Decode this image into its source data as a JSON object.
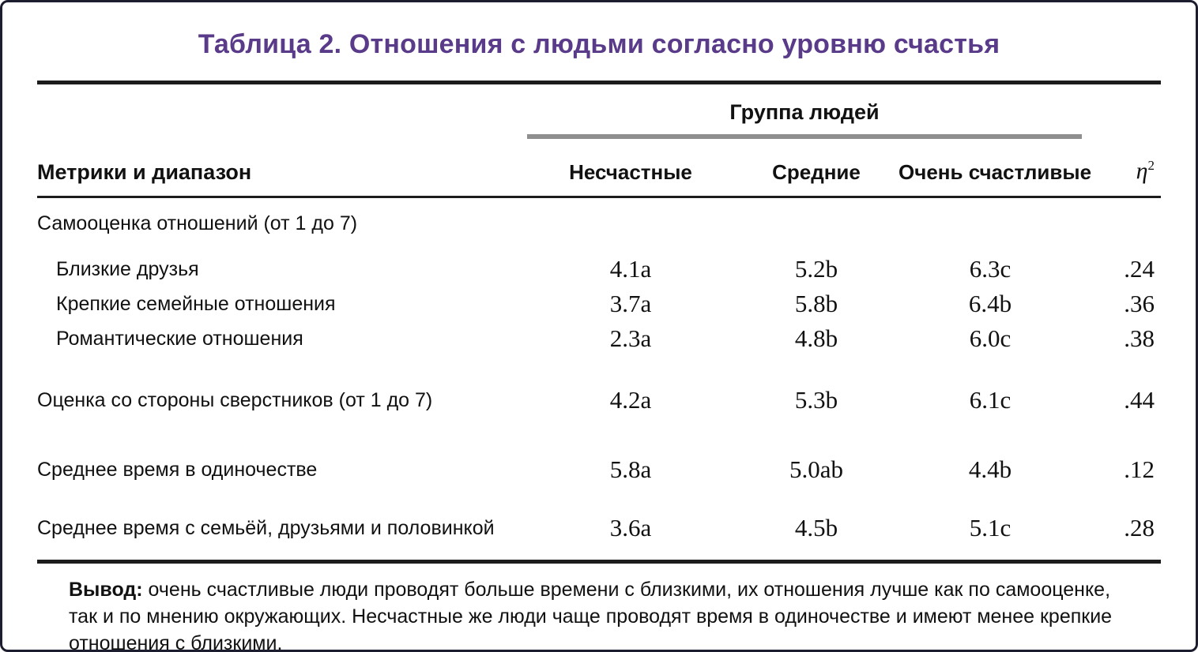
{
  "colors": {
    "title": "#5a3b8a",
    "rule": "#1c1c1c",
    "group_rule": "#8f8f8f",
    "border": "#1d1d30",
    "background": "#ffffff"
  },
  "title": "Таблица 2. Отношения с людьми согласно уровню счастья",
  "table": {
    "row_header": "Метрики и диапазон",
    "group_header": "Группа людей",
    "columns": [
      "Несчастные",
      "Средние",
      "Очень счастливые"
    ],
    "eta_symbol": "η",
    "eta_exponent": "2",
    "rows": [
      {
        "type": "section",
        "label": "Самооценка отношений (от 1 до 7)",
        "values": [
          "",
          "",
          "",
          ""
        ]
      },
      {
        "type": "data",
        "label": "Близкие друзья",
        "values": [
          "4.1a",
          "5.2b",
          "6.3c",
          ".24"
        ]
      },
      {
        "type": "data",
        "label": "Крепкие семейные отношения",
        "values": [
          "3.7a",
          "5.8b",
          "6.4b",
          ".36"
        ]
      },
      {
        "type": "data",
        "label": "Романтические отношения",
        "values": [
          "2.3a",
          "4.8b",
          "6.0c",
          ".38"
        ]
      },
      {
        "type": "data",
        "label": "Оценка со стороны сверстников (от 1 до 7)",
        "values": [
          "4.2a",
          "5.3b",
          "6.1c",
          ".44"
        ]
      },
      {
        "type": "data",
        "label": "Среднее время в одиночестве",
        "values": [
          "5.8a",
          "5.0ab",
          "4.4b",
          ".12"
        ]
      },
      {
        "type": "data",
        "label": "Среднее время с семьёй, друзьями и половинкой",
        "values": [
          "3.6a",
          "4.5b",
          "5.1c",
          ".28"
        ]
      }
    ]
  },
  "note": {
    "label": "Вывод:",
    "text": " очень счастливые люди проводят больше времени с близкими, их отношения лучше как по самооценке, так и по мнению окружающих. Несчастные же люди чаще проводят время в одиночестве и имеют менее крепкие отношения с близкими."
  }
}
